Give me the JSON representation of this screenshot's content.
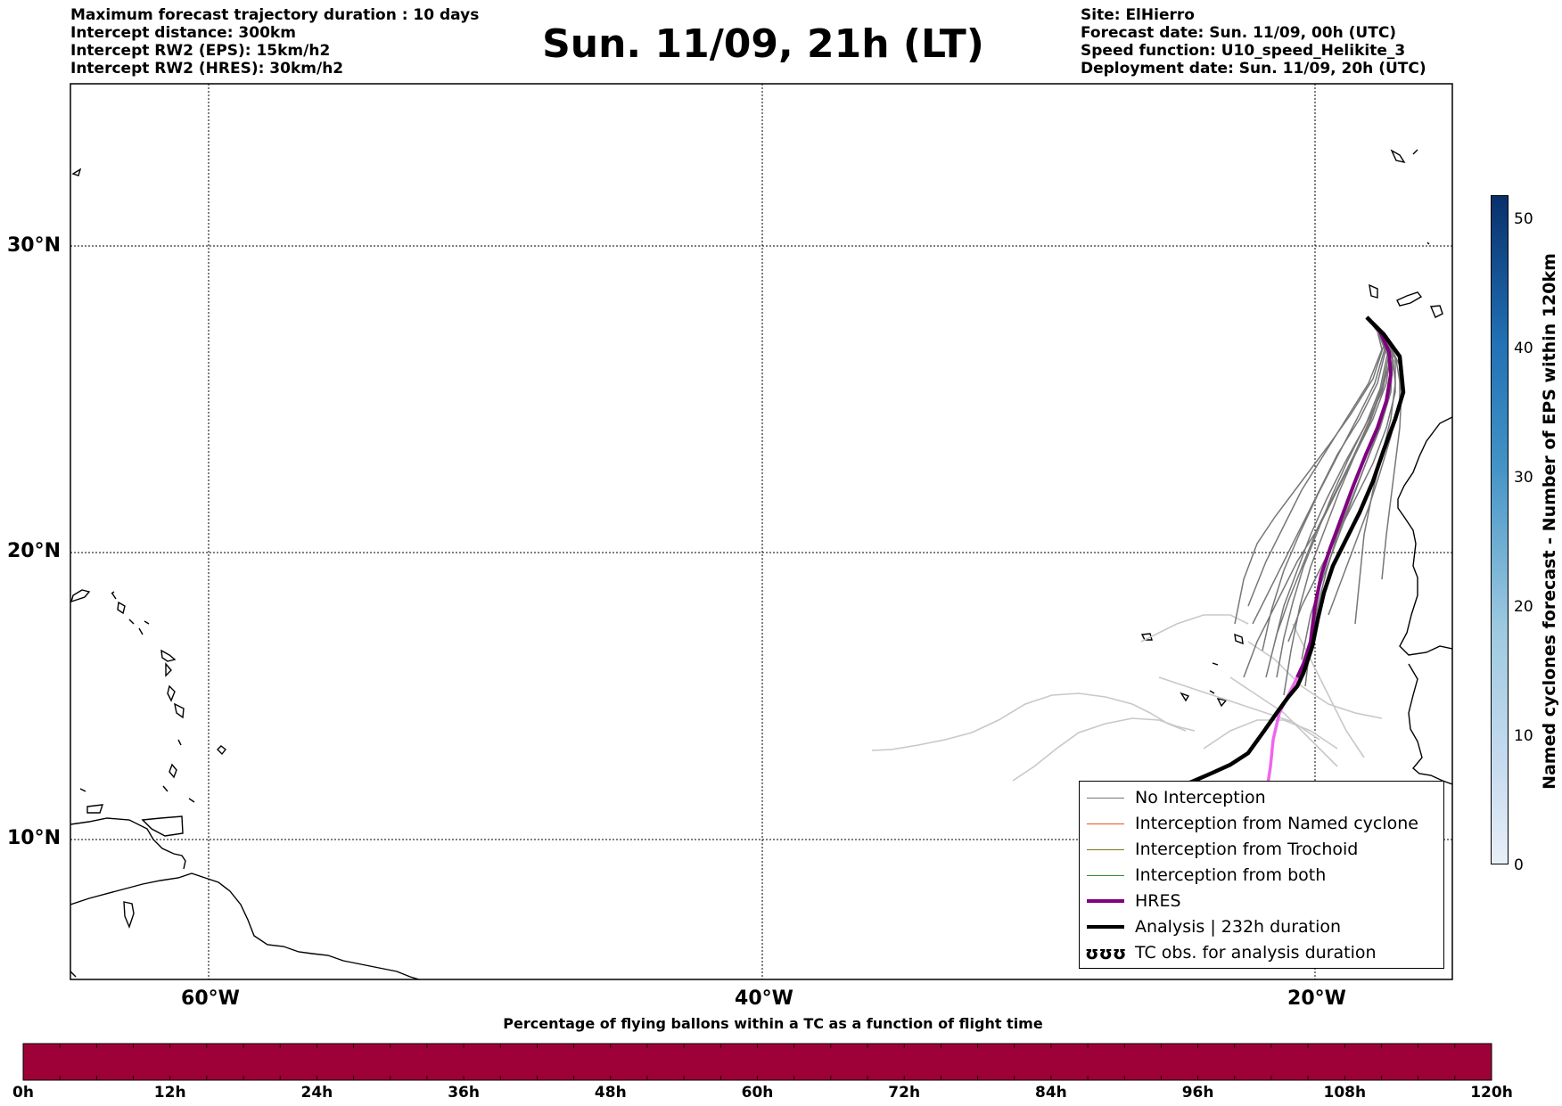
{
  "header": {
    "left_lines": [
      "Maximum forecast trajectory duration : 10 days",
      "Intercept distance: 300km",
      "Intercept RW2 (EPS):  15km/h2",
      "Intercept RW2 (HRES): 30km/h2"
    ],
    "title": "Sun. 11/09, 21h (LT)",
    "right_lines": [
      "Site: ElHierro",
      "Forecast date: Sun. 11/09, 00h (UTC)",
      "Speed function: U10_speed_Helikite_3",
      "Deployment date: Sun. 11/09, 20h (UTC)"
    ]
  },
  "map": {
    "lat_labels": [
      "30°N",
      "20°N",
      "10°N"
    ],
    "lon_labels": [
      "60°W",
      "40°W",
      "20°W"
    ]
  },
  "legend": {
    "items": [
      {
        "label": "No Interception",
        "color": "#777777"
      },
      {
        "label": "Interception from Named cyclone",
        "color": "#e8541e"
      },
      {
        "label": "Interception from Trochoid",
        "color": "#7a7a1a"
      },
      {
        "label": "Interception from both",
        "color": "#2e8b2e"
      },
      {
        "label": "HRES",
        "color": "#800080"
      },
      {
        "label": "Analysis | 232h duration",
        "color": "#000000"
      },
      {
        "label": "TC obs. for analysis duration",
        "color": "#000000"
      }
    ],
    "tc_symbol": "ʊʊʊ"
  },
  "bottom_colorbar": {
    "title": "Percentage of flying ballons within a TC as a function of flight time",
    "color": "#9e0038",
    "ticks": [
      "0h",
      "12h",
      "24h",
      "36h",
      "48h",
      "60h",
      "72h",
      "84h",
      "96h",
      "108h",
      "120h"
    ]
  },
  "right_colorbar": {
    "label": "Named cyclones forecast - Number of EPS within 120km",
    "ticks": [
      "0",
      "10",
      "20",
      "30",
      "40",
      "50"
    ]
  }
}
